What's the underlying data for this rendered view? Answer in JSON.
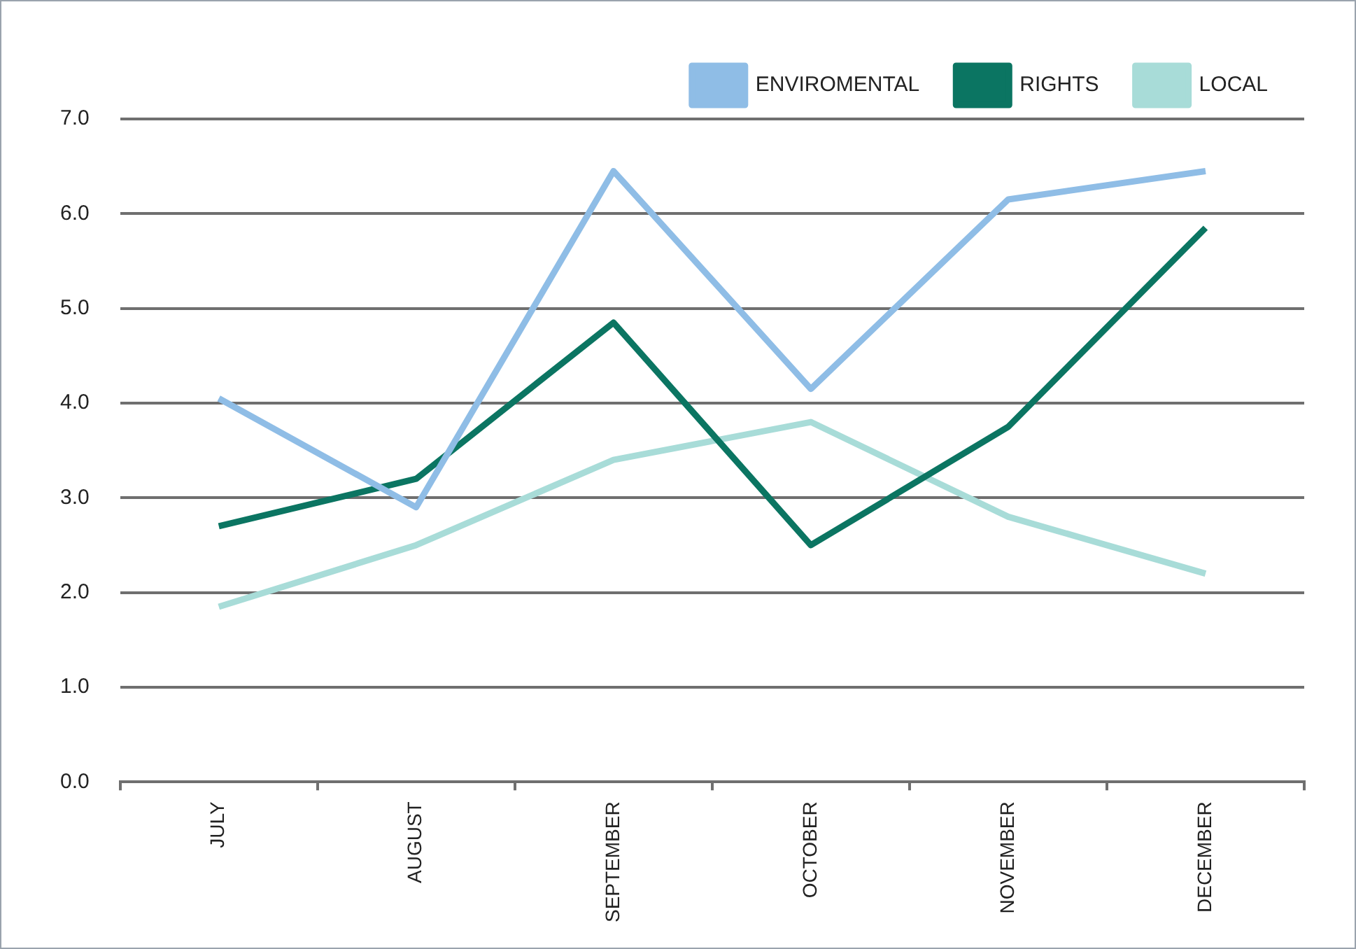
{
  "chart_data": {
    "type": "line",
    "categories": [
      "JULY",
      "AUGUST",
      "SEPTEMBER",
      "OCTOBER",
      "NOVEMBER",
      "DECEMBER"
    ],
    "series": [
      {
        "name": "ENVIROMENTAL",
        "color": "#8fbde6",
        "values": [
          4.05,
          2.9,
          6.45,
          4.15,
          6.15,
          6.45
        ]
      },
      {
        "name": "RIGHTS",
        "color": "#0b7562",
        "values": [
          2.7,
          3.2,
          4.85,
          2.5,
          3.75,
          5.85
        ]
      },
      {
        "name": "LOCAL",
        "color": "#a8dcd8",
        "values": [
          1.85,
          2.5,
          3.4,
          3.8,
          2.8,
          2.2
        ]
      }
    ],
    "ylim": [
      0,
      7
    ],
    "yticks": [
      {
        "value": 0,
        "label": "0.0"
      },
      {
        "value": 1,
        "label": "1.0"
      },
      {
        "value": 2,
        "label": "2.0"
      },
      {
        "value": 3,
        "label": "3.0"
      },
      {
        "value": 4,
        "label": "4.0"
      },
      {
        "value": 5,
        "label": "5.0"
      },
      {
        "value": 6,
        "label": "6.0"
      },
      {
        "value": 7,
        "label": "7.0"
      }
    ],
    "grid": "y",
    "legend": "top right",
    "marker": "none",
    "line_style": "solid"
  }
}
